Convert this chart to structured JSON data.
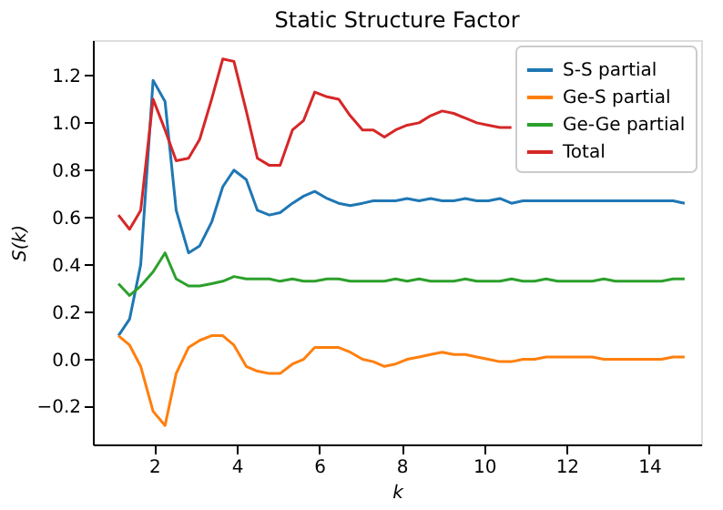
{
  "chart_data": {
    "type": "line",
    "title": "Static Structure Factor",
    "xlabel": "k",
    "ylabel": "S(k)",
    "x": [
      1.13,
      1.4,
      1.67,
      1.97,
      2.26,
      2.53,
      2.83,
      3.1,
      3.39,
      3.66,
      3.93,
      4.23,
      4.5,
      4.79,
      5.05,
      5.35,
      5.62,
      5.89,
      6.19,
      6.47,
      6.75,
      7.05,
      7.31,
      7.58,
      7.85,
      8.13,
      8.42,
      8.7,
      8.98,
      9.26,
      9.54,
      9.82,
      10.1,
      10.38,
      10.66,
      10.94,
      11.22,
      11.5,
      11.78,
      12.06,
      12.34,
      12.62,
      12.9,
      13.18,
      13.46,
      13.74,
      14.02,
      14.3,
      14.58,
      14.86
    ],
    "series": [
      {
        "name": "S-S partial",
        "color": "#1f77b4",
        "values": [
          0.1,
          0.17,
          0.4,
          1.18,
          1.09,
          0.63,
          0.45,
          0.48,
          0.58,
          0.73,
          0.8,
          0.76,
          0.63,
          0.61,
          0.62,
          0.66,
          0.69,
          0.71,
          0.68,
          0.66,
          0.65,
          0.66,
          0.67,
          0.67,
          0.67,
          0.68,
          0.67,
          0.68,
          0.67,
          0.67,
          0.68,
          0.67,
          0.67,
          0.68,
          0.66,
          0.67,
          0.67,
          0.67,
          0.67,
          0.67,
          0.67,
          0.67,
          0.67,
          0.67,
          0.67,
          0.67,
          0.67,
          0.67,
          0.67,
          0.66
        ]
      },
      {
        "name": "Ge-S partial",
        "color": "#ff7f0e",
        "values": [
          0.1,
          0.06,
          -0.03,
          -0.22,
          -0.28,
          -0.06,
          0.05,
          0.08,
          0.1,
          0.1,
          0.06,
          -0.03,
          -0.05,
          -0.06,
          -0.06,
          -0.02,
          0.0,
          0.05,
          0.05,
          0.05,
          0.03,
          0.0,
          -0.01,
          -0.03,
          -0.02,
          0.0,
          0.01,
          0.02,
          0.03,
          0.02,
          0.02,
          0.01,
          0.0,
          -0.01,
          -0.01,
          0.0,
          0.0,
          0.01,
          0.01,
          0.01,
          0.01,
          0.01,
          0.0,
          0.0,
          0.0,
          0.0,
          0.0,
          0.0,
          0.01,
          0.01
        ]
      },
      {
        "name": "Ge-Ge partial",
        "color": "#2ca02c",
        "values": [
          0.32,
          0.27,
          0.31,
          0.37,
          0.45,
          0.34,
          0.31,
          0.31,
          0.32,
          0.33,
          0.35,
          0.34,
          0.34,
          0.34,
          0.33,
          0.34,
          0.33,
          0.33,
          0.34,
          0.34,
          0.33,
          0.33,
          0.33,
          0.33,
          0.34,
          0.33,
          0.34,
          0.33,
          0.33,
          0.33,
          0.34,
          0.33,
          0.33,
          0.33,
          0.34,
          0.33,
          0.33,
          0.34,
          0.33,
          0.33,
          0.33,
          0.33,
          0.34,
          0.33,
          0.33,
          0.33,
          0.33,
          0.33,
          0.34,
          0.34
        ]
      },
      {
        "name": "Total",
        "color": "#d62728",
        "values": [
          0.61,
          0.55,
          0.63,
          1.1,
          0.97,
          0.84,
          0.85,
          0.93,
          1.1,
          1.27,
          1.26,
          1.05,
          0.85,
          0.82,
          0.82,
          0.97,
          1.01,
          1.13,
          1.11,
          1.1,
          1.03,
          0.97,
          0.97,
          0.94,
          0.97,
          0.99,
          1.0,
          1.03,
          1.05,
          1.04,
          1.02,
          1.0,
          0.99,
          0.98,
          0.98,
          null,
          null,
          null,
          null,
          null,
          null,
          null,
          null,
          null,
          null,
          null,
          null,
          null,
          null,
          null
        ]
      }
    ],
    "xlim": [
      0.51,
      15.26
    ],
    "xticks": [
      2,
      4,
      6,
      8,
      10,
      12,
      14
    ],
    "ylim": [
      -0.36,
      1.35
    ],
    "yticks": [
      -0.2,
      {
        "value": 0,
        "label": "0.0"
      },
      0.2,
      0.4,
      0.6,
      0.8,
      {
        "value": 1,
        "label": "1.0"
      },
      1.2
    ],
    "grid": false,
    "legend": "top right",
    "marker": "none",
    "line_style": "solid"
  }
}
